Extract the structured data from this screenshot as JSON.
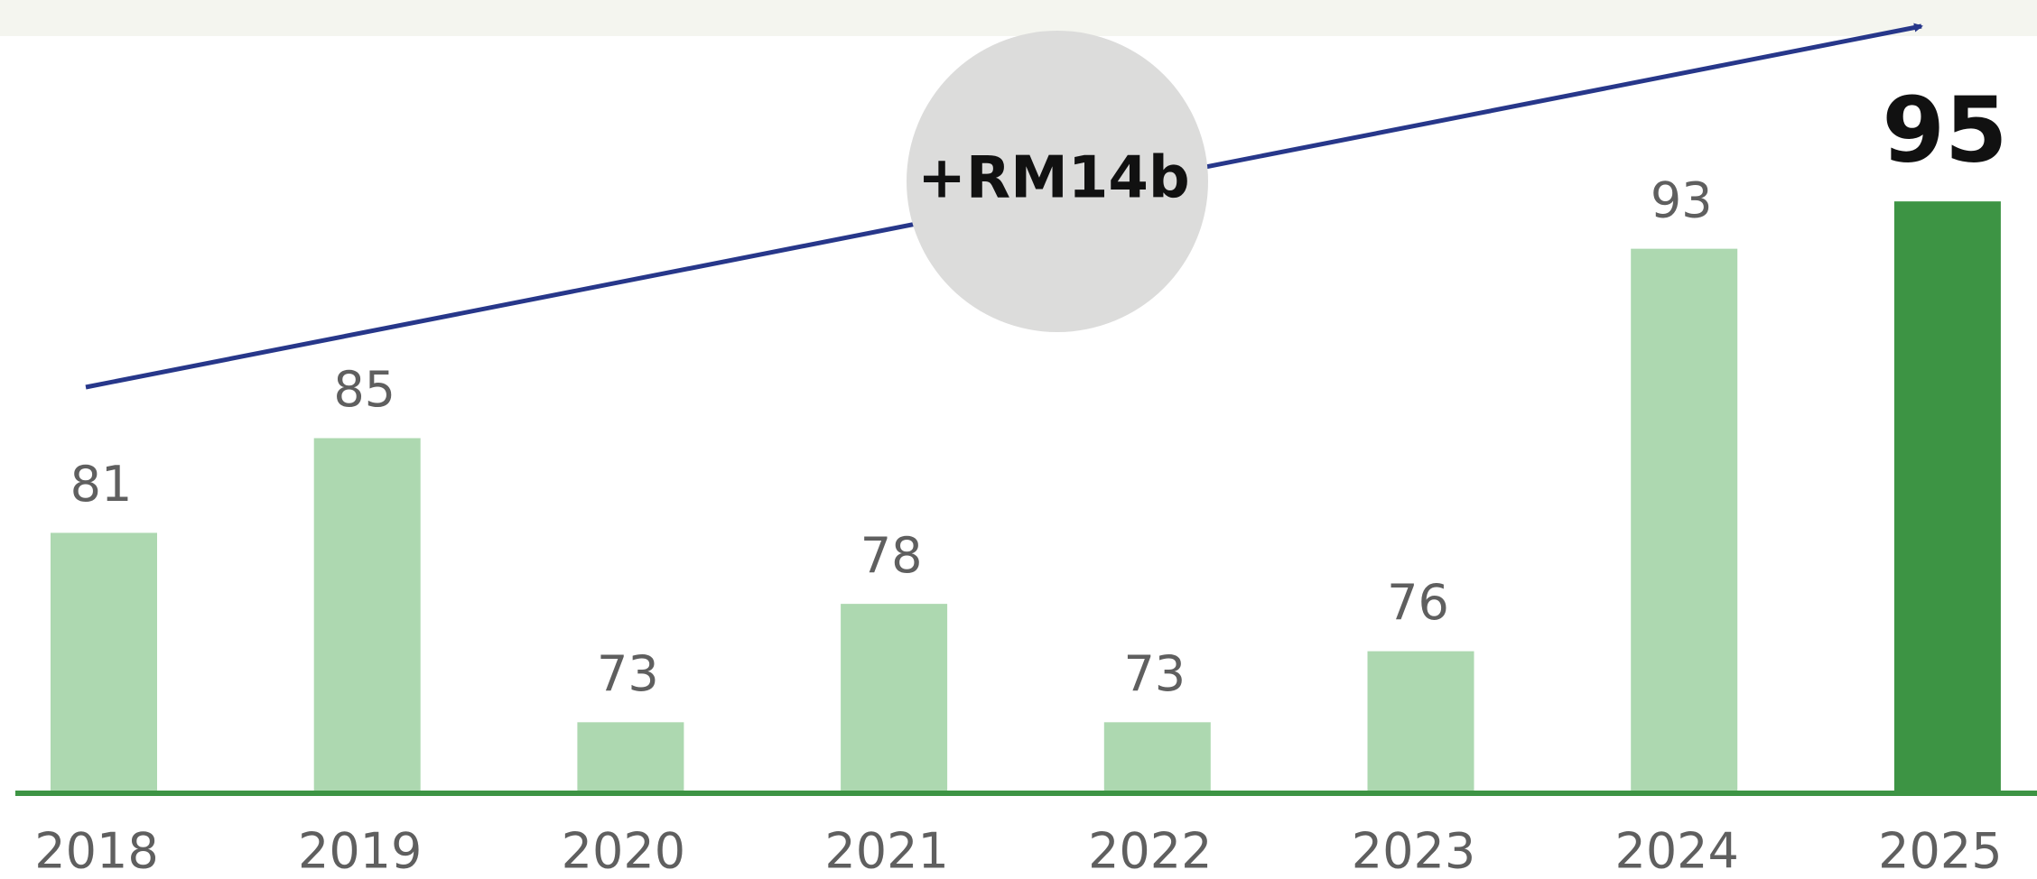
{
  "chart_data": {
    "type": "bar",
    "categories": [
      "2018",
      "2019",
      "2020",
      "2021",
      "2022",
      "2023",
      "2024",
      "2025"
    ],
    "values": [
      81,
      85,
      73,
      78,
      73,
      76,
      93,
      95
    ],
    "colors": [
      "#add8b0",
      "#add8b0",
      "#add8b0",
      "#add8b0",
      "#add8b0",
      "#add8b0",
      "#add8b0",
      "#3d9444"
    ],
    "ylim": [
      70,
      100
    ],
    "annotation": "+RM14b"
  }
}
